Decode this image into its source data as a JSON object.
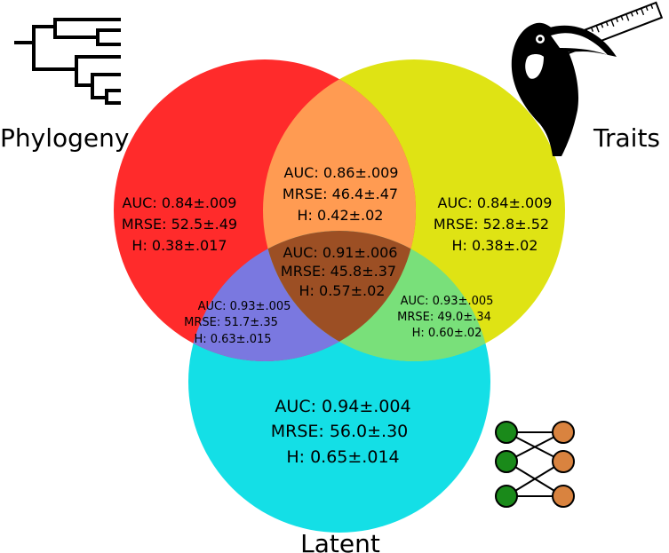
{
  "sets": {
    "phylogeny": {
      "label": "Phylogeny",
      "color": "#ff2b2b"
    },
    "traits": {
      "label": "Traits",
      "color": "#dfe314"
    },
    "latent": {
      "label": "Latent",
      "color": "#14dfe6"
    }
  },
  "overlap_colors": {
    "phylogeny_traits": "#ff9b52",
    "phylogeny_latent": "#7a78e0",
    "traits_latent": "#79e07a",
    "all_three": "#9c4f24"
  },
  "regions": {
    "phylogeny_only": {
      "auc": "AUC: 0.84±.009",
      "mrse": "MRSE: 52.5±.49",
      "h": "H: 0.38±.017"
    },
    "traits_only": {
      "auc": "AUC: 0.84±.009",
      "mrse": "MRSE: 52.8±.52",
      "h": "H: 0.38±.02"
    },
    "latent_only": {
      "auc": "AUC: 0.94±.004",
      "mrse": "MRSE: 56.0±.30",
      "h": "H: 0.65±.014"
    },
    "phylogeny_traits": {
      "auc": "AUC: 0.86±.009",
      "mrse": "MRSE: 46.4±.47",
      "h": "H: 0.42±.02"
    },
    "phylogeny_latent": {
      "auc": "AUC: 0.93±.005",
      "mrse": "MRSE: 51.7±.35",
      "h": "H: 0.63±.015"
    },
    "traits_latent": {
      "auc": "AUC: 0.93±.005",
      "mrse": "MRSE: 49.0±.34",
      "h": "H: 0.60±.02"
    },
    "all_three": {
      "auc": "AUC: 0.91±.006",
      "mrse": "MRSE: 45.8±.37",
      "h": "H: 0.57±.02"
    }
  },
  "icons": {
    "phylogeny": "phylogenetic-tree-icon",
    "traits": "toucan-with-ruler-icon",
    "latent": "bipartite-network-icon"
  }
}
